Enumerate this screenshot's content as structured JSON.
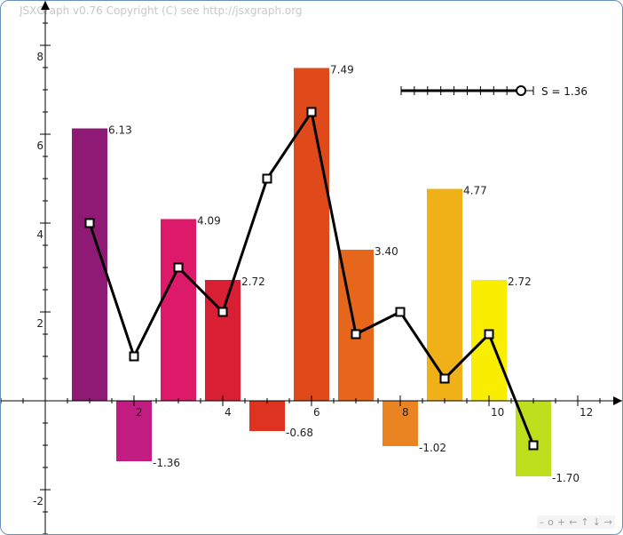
{
  "copyright": "JSXGraph v0.76 Copyright (C) see http://jsxgraph.org",
  "navbar": [
    "–",
    "o",
    "+",
    "←",
    "↑",
    "↓",
    "→"
  ],
  "slider": {
    "label": "S = 1.36",
    "value": 1.36,
    "min": 0,
    "max": 1.5
  },
  "chart_data": {
    "type": "bar",
    "x": [
      1,
      2,
      3,
      4,
      5,
      6,
      7,
      8,
      9,
      10,
      11
    ],
    "values": [
      6.13,
      -1.36,
      4.09,
      2.72,
      -0.68,
      7.49,
      3.4,
      -1.02,
      4.77,
      2.72,
      -1.7
    ],
    "value_labels": [
      "6.13",
      "-1.36",
      "4.09",
      "2.72",
      "-0.68",
      "7.49",
      "3.40",
      "-1.02",
      "4.77",
      "2.72",
      "-1.70"
    ],
    "bar_colors": [
      "#8f1a75",
      "#c11c82",
      "#dd1a69",
      "#d91f33",
      "#dd3320",
      "#e0491a",
      "#e6661c",
      "#ea8322",
      "#f0b018",
      "#f9ed02",
      "#bddf1e"
    ],
    "line_points": [
      {
        "x": 1,
        "y": 4.0
      },
      {
        "x": 2,
        "y": 1.0
      },
      {
        "x": 3,
        "y": 3.0
      },
      {
        "x": 4,
        "y": 2.0
      },
      {
        "x": 5,
        "y": 5.0
      },
      {
        "x": 6,
        "y": 6.5
      },
      {
        "x": 7,
        "y": 1.5
      },
      {
        "x": 8,
        "y": 2.0
      },
      {
        "x": 9,
        "y": 0.5
      },
      {
        "x": 10,
        "y": 1.5
      },
      {
        "x": 11,
        "y": -1.0
      }
    ],
    "x_ticks": [
      "2",
      "4",
      "6",
      "8",
      "10",
      "12"
    ],
    "y_ticks": [
      "-2",
      "2",
      "4",
      "6",
      "8"
    ],
    "xlim": [
      -1,
      13
    ],
    "ylim": [
      -3,
      8.6
    ],
    "grid": false
  }
}
